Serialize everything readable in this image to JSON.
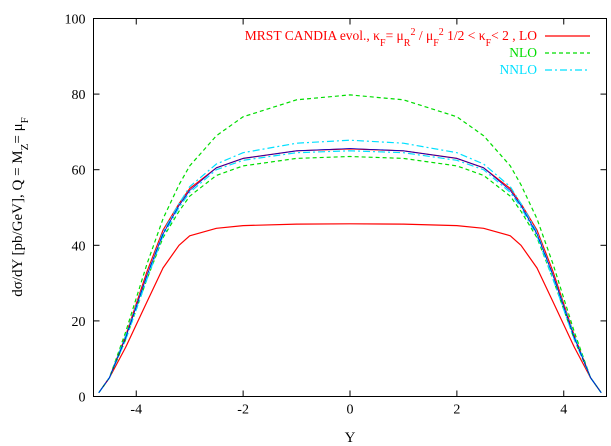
{
  "chart_data": {
    "type": "line",
    "xlabel": "Y",
    "ylabel": "dσ/dY [pb/GeV], Q = M_Z= μ_F",
    "xlim": [
      -4.8,
      4.8
    ],
    "ylim": [
      0,
      100
    ],
    "x_ticks": [
      {
        "value": -4,
        "label": "-4"
      },
      {
        "value": -2,
        "label": "-2"
      },
      {
        "value": 0,
        "label": "0"
      },
      {
        "value": 2,
        "label": "2"
      },
      {
        "value": 4,
        "label": "4"
      }
    ],
    "y_ticks": [
      {
        "value": 0,
        "label": "0"
      },
      {
        "value": 20,
        "label": "20"
      },
      {
        "value": 40,
        "label": "40"
      },
      {
        "value": 60,
        "label": "60"
      },
      {
        "value": 80,
        "label": "80"
      },
      {
        "value": 100,
        "label": "100"
      }
    ],
    "legend_placement": "top-right",
    "grid": false,
    "series": [
      {
        "name": "MRST CANDIA evol.,  κ_F= μ_R^2 / μ_F^2   1/2 < κ_F< 2 , LO",
        "legend_label": "MRST CANDIA evol.,  κF=  μR2 / μF2   1/2 < κF< 2 , LO",
        "color": "#ff0000",
        "dash": "",
        "width": 1.2,
        "points": [
          [
            -4.7,
            1
          ],
          [
            -4.5,
            5
          ],
          [
            -4.2,
            13
          ],
          [
            -3.8,
            25
          ],
          [
            -3.5,
            34
          ],
          [
            -3.2,
            40
          ],
          [
            -3,
            42.5
          ],
          [
            -2.5,
            44.5
          ],
          [
            -2,
            45.2
          ],
          [
            -1,
            45.6
          ],
          [
            0,
            45.7
          ],
          [
            1,
            45.6
          ],
          [
            2,
            45.2
          ],
          [
            2.5,
            44.5
          ],
          [
            3,
            42.5
          ],
          [
            3.2,
            40
          ],
          [
            3.5,
            34
          ],
          [
            3.8,
            25
          ],
          [
            4.2,
            13
          ],
          [
            4.5,
            5
          ],
          [
            4.7,
            1
          ]
        ]
      },
      {
        "name": "",
        "color": "#ff0000",
        "dash": "",
        "width": 1.2,
        "points": [
          [
            -4.7,
            1
          ],
          [
            -4.5,
            5
          ],
          [
            -4.2,
            16
          ],
          [
            -3.8,
            33
          ],
          [
            -3.5,
            44
          ],
          [
            -3.2,
            51
          ],
          [
            -3,
            55
          ],
          [
            -2.5,
            60.5
          ],
          [
            -2,
            63
          ],
          [
            -1,
            65
          ],
          [
            0,
            65.5
          ],
          [
            1,
            65
          ],
          [
            2,
            63
          ],
          [
            2.5,
            60.5
          ],
          [
            3,
            55
          ],
          [
            3.2,
            51
          ],
          [
            3.5,
            44
          ],
          [
            3.8,
            33
          ],
          [
            4.2,
            16
          ],
          [
            4.5,
            5
          ],
          [
            4.7,
            1
          ]
        ]
      },
      {
        "name": "NLO",
        "color": "#00dd00",
        "dash": "4,3",
        "width": 1.2,
        "points": [
          [
            -4.7,
            1
          ],
          [
            -4.5,
            5
          ],
          [
            -4.2,
            17
          ],
          [
            -3.8,
            35
          ],
          [
            -3.5,
            47
          ],
          [
            -3.2,
            56
          ],
          [
            -3,
            61
          ],
          [
            -2.5,
            69
          ],
          [
            -2,
            74
          ],
          [
            -1,
            78.5
          ],
          [
            0,
            79.8
          ],
          [
            1,
            78.5
          ],
          [
            2,
            74
          ],
          [
            2.5,
            69
          ],
          [
            3,
            61
          ],
          [
            3.2,
            56
          ],
          [
            3.5,
            47
          ],
          [
            3.8,
            35
          ],
          [
            4.2,
            17
          ],
          [
            4.5,
            5
          ],
          [
            4.7,
            1
          ]
        ]
      },
      {
        "name": "",
        "color": "#00dd00",
        "dash": "4,3",
        "width": 1.2,
        "points": [
          [
            -4.7,
            1
          ],
          [
            -4.5,
            5
          ],
          [
            -4.2,
            15
          ],
          [
            -3.8,
            31
          ],
          [
            -3.5,
            42
          ],
          [
            -3.2,
            49
          ],
          [
            -3,
            53
          ],
          [
            -2.5,
            58.5
          ],
          [
            -2,
            61
          ],
          [
            -1,
            63
          ],
          [
            0,
            63.5
          ],
          [
            1,
            63
          ],
          [
            2,
            61
          ],
          [
            2.5,
            58.5
          ],
          [
            3,
            53
          ],
          [
            3.2,
            49
          ],
          [
            3.5,
            42
          ],
          [
            3.8,
            31
          ],
          [
            4.2,
            15
          ],
          [
            4.5,
            5
          ],
          [
            4.7,
            1
          ]
        ]
      },
      {
        "name": "NNLO",
        "color": "#00e0ff",
        "dash": "7,3,2,3",
        "width": 1.2,
        "points": [
          [
            -4.7,
            1
          ],
          [
            -4.5,
            5
          ],
          [
            -4.2,
            16
          ],
          [
            -3.8,
            32
          ],
          [
            -3.5,
            43.5
          ],
          [
            -3.2,
            51
          ],
          [
            -3,
            55.5
          ],
          [
            -2.5,
            61.5
          ],
          [
            -2,
            64.5
          ],
          [
            -1,
            67
          ],
          [
            0,
            67.8
          ],
          [
            1,
            67
          ],
          [
            2,
            64.5
          ],
          [
            2.5,
            61.5
          ],
          [
            3,
            55.5
          ],
          [
            3.2,
            51
          ],
          [
            3.5,
            43.5
          ],
          [
            3.8,
            32
          ],
          [
            4.2,
            16
          ],
          [
            4.5,
            5
          ],
          [
            4.7,
            1
          ]
        ]
      },
      {
        "name": "",
        "color": "#00e0ff",
        "dash": "7,3,2,3",
        "width": 1.2,
        "points": [
          [
            -4.7,
            1
          ],
          [
            -4.5,
            5
          ],
          [
            -4.2,
            15
          ],
          [
            -3.8,
            31
          ],
          [
            -3.5,
            42.5
          ],
          [
            -3.2,
            50
          ],
          [
            -3,
            54
          ],
          [
            -2.5,
            60
          ],
          [
            -2,
            62.5
          ],
          [
            -1,
            64.5
          ],
          [
            0,
            65
          ],
          [
            1,
            64.5
          ],
          [
            2,
            62.5
          ],
          [
            2.5,
            60
          ],
          [
            3,
            54
          ],
          [
            3.2,
            50
          ],
          [
            3.5,
            42.5
          ],
          [
            3.8,
            31
          ],
          [
            4.2,
            15
          ],
          [
            4.5,
            5
          ],
          [
            4.7,
            1
          ]
        ]
      },
      {
        "name": "",
        "color": "#0000cc",
        "dash": "",
        "width": 0.8,
        "points": [
          [
            -4.7,
            1
          ],
          [
            -4.5,
            5
          ],
          [
            -4.2,
            15.5
          ],
          [
            -3.8,
            32
          ],
          [
            -3.5,
            43
          ],
          [
            -3.2,
            50.5
          ],
          [
            -3,
            54.5
          ],
          [
            -2.5,
            60.5
          ],
          [
            -2,
            63
          ],
          [
            -1,
            65
          ],
          [
            0,
            65.6
          ],
          [
            1,
            65
          ],
          [
            2,
            63
          ],
          [
            2.5,
            60.5
          ],
          [
            3,
            54.5
          ],
          [
            3.2,
            50.5
          ],
          [
            3.5,
            43
          ],
          [
            3.8,
            32
          ],
          [
            4.2,
            15.5
          ],
          [
            4.5,
            5
          ],
          [
            4.7,
            1
          ]
        ]
      }
    ]
  }
}
